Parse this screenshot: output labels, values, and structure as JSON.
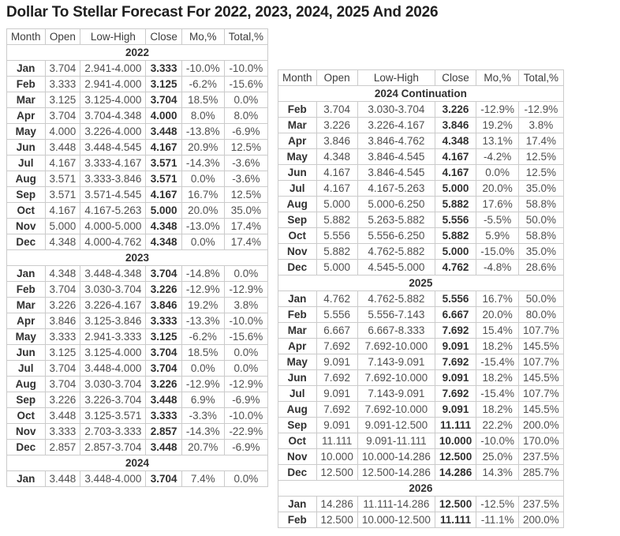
{
  "page": {
    "title": "Dollar To Stellar Forecast For 2022, 2023, 2024, 2025 And 2026",
    "background_color": "#ffffff",
    "border_color": "#cbcbcb",
    "text_color": "#4f4f4f",
    "bold_text_color": "#303030"
  },
  "columns": [
    "Month",
    "Open",
    "Low-High",
    "Close",
    "Mo,%",
    "Total,%"
  ],
  "column_keys": [
    "month",
    "open",
    "low-high",
    "close",
    "mo-pct",
    "total-pct"
  ],
  "tables": [
    {
      "name": "forecast-table-left",
      "sections": [
        {
          "year": "2022",
          "rows": [
            [
              "Jan",
              "3.704",
              "2.941-4.000",
              "3.333",
              "-10.0%",
              "-10.0%"
            ],
            [
              "Feb",
              "3.333",
              "2.941-4.000",
              "3.125",
              "-6.2%",
              "-15.6%"
            ],
            [
              "Mar",
              "3.125",
              "3.125-4.000",
              "3.704",
              "18.5%",
              "0.0%"
            ],
            [
              "Apr",
              "3.704",
              "3.704-4.348",
              "4.000",
              "8.0%",
              "8.0%"
            ],
            [
              "May",
              "4.000",
              "3.226-4.000",
              "3.448",
              "-13.8%",
              "-6.9%"
            ],
            [
              "Jun",
              "3.448",
              "3.448-4.545",
              "4.167",
              "20.9%",
              "12.5%"
            ],
            [
              "Jul",
              "4.167",
              "3.333-4.167",
              "3.571",
              "-14.3%",
              "-3.6%"
            ],
            [
              "Aug",
              "3.571",
              "3.333-3.846",
              "3.571",
              "0.0%",
              "-3.6%"
            ],
            [
              "Sep",
              "3.571",
              "3.571-4.545",
              "4.167",
              "16.7%",
              "12.5%"
            ],
            [
              "Oct",
              "4.167",
              "4.167-5.263",
              "5.000",
              "20.0%",
              "35.0%"
            ],
            [
              "Nov",
              "5.000",
              "4.000-5.000",
              "4.348",
              "-13.0%",
              "17.4%"
            ],
            [
              "Dec",
              "4.348",
              "4.000-4.762",
              "4.348",
              "0.0%",
              "17.4%"
            ]
          ]
        },
        {
          "year": "2023",
          "rows": [
            [
              "Jan",
              "4.348",
              "3.448-4.348",
              "3.704",
              "-14.8%",
              "0.0%"
            ],
            [
              "Feb",
              "3.704",
              "3.030-3.704",
              "3.226",
              "-12.9%",
              "-12.9%"
            ],
            [
              "Mar",
              "3.226",
              "3.226-4.167",
              "3.846",
              "19.2%",
              "3.8%"
            ],
            [
              "Apr",
              "3.846",
              "3.125-3.846",
              "3.333",
              "-13.3%",
              "-10.0%"
            ],
            [
              "May",
              "3.333",
              "2.941-3.333",
              "3.125",
              "-6.2%",
              "-15.6%"
            ],
            [
              "Jun",
              "3.125",
              "3.125-4.000",
              "3.704",
              "18.5%",
              "0.0%"
            ],
            [
              "Jul",
              "3.704",
              "3.448-4.000",
              "3.704",
              "0.0%",
              "0.0%"
            ],
            [
              "Aug",
              "3.704",
              "3.030-3.704",
              "3.226",
              "-12.9%",
              "-12.9%"
            ],
            [
              "Sep",
              "3.226",
              "3.226-3.704",
              "3.448",
              "6.9%",
              "-6.9%"
            ],
            [
              "Oct",
              "3.448",
              "3.125-3.571",
              "3.333",
              "-3.3%",
              "-10.0%"
            ],
            [
              "Nov",
              "3.333",
              "2.703-3.333",
              "2.857",
              "-14.3%",
              "-22.9%"
            ],
            [
              "Dec",
              "2.857",
              "2.857-3.704",
              "3.448",
              "20.7%",
              "-6.9%"
            ]
          ]
        },
        {
          "year": "2024",
          "rows": [
            [
              "Jan",
              "3.448",
              "3.448-4.000",
              "3.704",
              "7.4%",
              "0.0%"
            ]
          ]
        }
      ]
    },
    {
      "name": "forecast-table-right",
      "sections": [
        {
          "year": "2024 Continuation",
          "rows": [
            [
              "Feb",
              "3.704",
              "3.030-3.704",
              "3.226",
              "-12.9%",
              "-12.9%"
            ],
            [
              "Mar",
              "3.226",
              "3.226-4.167",
              "3.846",
              "19.2%",
              "3.8%"
            ],
            [
              "Apr",
              "3.846",
              "3.846-4.762",
              "4.348",
              "13.1%",
              "17.4%"
            ],
            [
              "May",
              "4.348",
              "3.846-4.545",
              "4.167",
              "-4.2%",
              "12.5%"
            ],
            [
              "Jun",
              "4.167",
              "3.846-4.545",
              "4.167",
              "0.0%",
              "12.5%"
            ],
            [
              "Jul",
              "4.167",
              "4.167-5.263",
              "5.000",
              "20.0%",
              "35.0%"
            ],
            [
              "Aug",
              "5.000",
              "5.000-6.250",
              "5.882",
              "17.6%",
              "58.8%"
            ],
            [
              "Sep",
              "5.882",
              "5.263-5.882",
              "5.556",
              "-5.5%",
              "50.0%"
            ],
            [
              "Oct",
              "5.556",
              "5.556-6.250",
              "5.882",
              "5.9%",
              "58.8%"
            ],
            [
              "Nov",
              "5.882",
              "4.762-5.882",
              "5.000",
              "-15.0%",
              "35.0%"
            ],
            [
              "Dec",
              "5.000",
              "4.545-5.000",
              "4.762",
              "-4.8%",
              "28.6%"
            ]
          ]
        },
        {
          "year": "2025",
          "rows": [
            [
              "Jan",
              "4.762",
              "4.762-5.882",
              "5.556",
              "16.7%",
              "50.0%"
            ],
            [
              "Feb",
              "5.556",
              "5.556-7.143",
              "6.667",
              "20.0%",
              "80.0%"
            ],
            [
              "Mar",
              "6.667",
              "6.667-8.333",
              "7.692",
              "15.4%",
              "107.7%"
            ],
            [
              "Apr",
              "7.692",
              "7.692-10.000",
              "9.091",
              "18.2%",
              "145.5%"
            ],
            [
              "May",
              "9.091",
              "7.143-9.091",
              "7.692",
              "-15.4%",
              "107.7%"
            ],
            [
              "Jun",
              "7.692",
              "7.692-10.000",
              "9.091",
              "18.2%",
              "145.5%"
            ],
            [
              "Jul",
              "9.091",
              "7.143-9.091",
              "7.692",
              "-15.4%",
              "107.7%"
            ],
            [
              "Aug",
              "7.692",
              "7.692-10.000",
              "9.091",
              "18.2%",
              "145.5%"
            ],
            [
              "Sep",
              "9.091",
              "9.091-12.500",
              "11.111",
              "22.2%",
              "200.0%"
            ],
            [
              "Oct",
              "11.111",
              "9.091-11.111",
              "10.000",
              "-10.0%",
              "170.0%"
            ],
            [
              "Nov",
              "10.000",
              "10.000-14.286",
              "12.500",
              "25.0%",
              "237.5%"
            ],
            [
              "Dec",
              "12.500",
              "12.500-14.286",
              "14.286",
              "14.3%",
              "285.7%"
            ]
          ]
        },
        {
          "year": "2026",
          "rows": [
            [
              "Jan",
              "14.286",
              "11.111-14.286",
              "12.500",
              "-12.5%",
              "237.5%"
            ],
            [
              "Feb",
              "12.500",
              "10.000-12.500",
              "11.111",
              "-11.1%",
              "200.0%"
            ]
          ]
        }
      ]
    }
  ]
}
